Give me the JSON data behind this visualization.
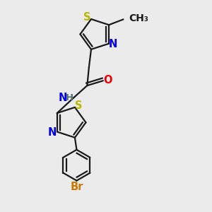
{
  "bg_color": "#ebebeb",
  "bond_color": "#1a1a1a",
  "S_color": "#b8b800",
  "N_color": "#0000ee",
  "O_color": "#ee0000",
  "H_color": "#507070",
  "Br_color": "#cc7700",
  "line_width": 1.6,
  "dbo": 0.012,
  "font_size": 10.5,
  "figsize": [
    3.0,
    3.0
  ],
  "dpi": 100,
  "xlim": [
    0.15,
    0.85
  ],
  "ylim": [
    0.02,
    0.98
  ]
}
